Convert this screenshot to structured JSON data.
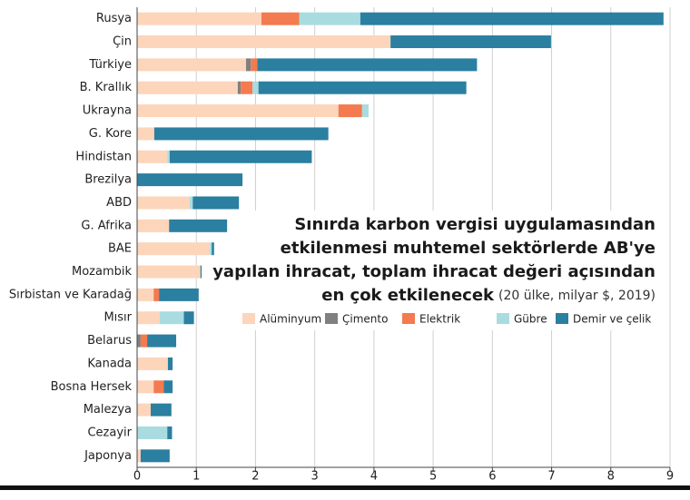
{
  "chart_data": {
    "type": "stacked-bar-horizontal",
    "title": [
      "Sınırda karbon vergisi uygulamasından",
      "etkilenmesi muhtemel sektörlerde AB'ye",
      "yapılan ihracat, toplam ihracat değeri açısından",
      "en çok etkilenecek"
    ],
    "subtitle": "(20 ülke, milyar $, 2019)",
    "categories": [
      "Rusya",
      "Çin",
      "Türkiye",
      "B. Krallık",
      "Ukrayna",
      "G. Kore",
      "Hindistan",
      "Brezilya",
      "ABD",
      "G. Afrika",
      "BAE",
      "Mozambik",
      "Sırbistan ve Karadağ",
      "Mısır",
      "Belarus",
      "Kanada",
      "Bosna Hersek",
      "Malezya",
      "Cezayir",
      "Japonya"
    ],
    "series": [
      {
        "name": "Alüminyum",
        "color": "#fcd5bb",
        "values": [
          2.1,
          4.28,
          1.84,
          1.7,
          3.4,
          0.29,
          0.51,
          0,
          0.89,
          0.54,
          1.23,
          1.07,
          0.28,
          0.38,
          0,
          0.52,
          0.28,
          0.23,
          0,
          0.06
        ]
      },
      {
        "name": "Çimento",
        "color": "#808080",
        "values": [
          0,
          0,
          0.08,
          0.05,
          0,
          0,
          0,
          0,
          0,
          0,
          0,
          0,
          0,
          0,
          0.06,
          0,
          0,
          0,
          0,
          0
        ]
      },
      {
        "name": "Elektrik",
        "color": "#f47a4f",
        "values": [
          0.64,
          0,
          0.11,
          0.2,
          0.4,
          0,
          0,
          0,
          0,
          0,
          0,
          0,
          0.09,
          0,
          0.11,
          0,
          0.17,
          0,
          0,
          0
        ]
      },
      {
        "name": "Gübre",
        "color": "#a9dce0",
        "values": [
          1.03,
          0,
          0,
          0.1,
          0.11,
          0,
          0.04,
          0,
          0.05,
          0,
          0.03,
          0,
          0,
          0.41,
          0,
          0,
          0,
          0,
          0.51,
          0
        ]
      },
      {
        "name": "Demir ve çelik",
        "color": "#2b7fa0",
        "values": [
          5.12,
          2.71,
          3.71,
          3.51,
          0,
          2.94,
          2.4,
          1.78,
          0.78,
          0.98,
          0.04,
          0.02,
          0.67,
          0.17,
          0.49,
          0.08,
          0.15,
          0.35,
          0.08,
          0.49
        ]
      }
    ],
    "xlim": [
      0,
      9
    ],
    "xticks": [
      0,
      1,
      2,
      3,
      4,
      5,
      6,
      7,
      8,
      9
    ],
    "grid": true
  }
}
